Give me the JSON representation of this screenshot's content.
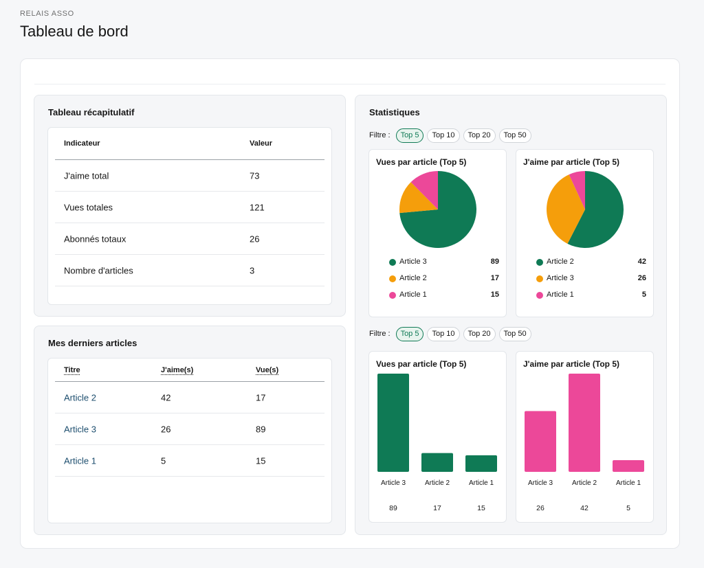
{
  "header": {
    "eyebrow": "RELAIS ASSO",
    "title": "Tableau de bord"
  },
  "summary": {
    "title": "Tableau récapitulatif",
    "columns": [
      "Indicateur",
      "Valeur"
    ],
    "rows": [
      {
        "label": "J'aime total",
        "value": "73"
      },
      {
        "label": "Vues totales",
        "value": "121"
      },
      {
        "label": "Abonnés totaux",
        "value": "26"
      },
      {
        "label": "Nombre d'articles",
        "value": "3"
      }
    ]
  },
  "articles": {
    "title": "Mes derniers articles",
    "columns": [
      "Titre",
      "J'aime(s)",
      "Vue(s)"
    ],
    "rows": [
      {
        "title": "Article 2",
        "likes": "42",
        "views": "17"
      },
      {
        "title": "Article 3",
        "likes": "26",
        "views": "89"
      },
      {
        "title": "Article 1",
        "likes": "5",
        "views": "15"
      }
    ]
  },
  "stats": {
    "title": "Statistiques",
    "filter_label": "Filtre :",
    "filters": [
      "Top 5",
      "Top 10",
      "Top 20",
      "Top 50"
    ],
    "active_filter": "Top 5",
    "colors": {
      "green": "#0f7a55",
      "orange": "#f59e0b",
      "pink": "#ec4899"
    }
  },
  "chart_data": [
    {
      "type": "pie",
      "title": "Vues par article (Top 5)",
      "labels": [
        "Article 3",
        "Article 2",
        "Article 1"
      ],
      "values": [
        89,
        17,
        15
      ],
      "colors": [
        "#0f7a55",
        "#f59e0b",
        "#ec4899"
      ],
      "legend": "bottom"
    },
    {
      "type": "pie",
      "title": "J'aime par article (Top 5)",
      "labels": [
        "Article 2",
        "Article 3",
        "Article 1"
      ],
      "values": [
        42,
        26,
        5
      ],
      "colors": [
        "#0f7a55",
        "#f59e0b",
        "#ec4899"
      ],
      "legend": "bottom"
    },
    {
      "type": "bar",
      "title": "Vues par article (Top 5)",
      "categories": [
        "Article 3",
        "Article 2",
        "Article 1"
      ],
      "values": [
        89,
        17,
        15
      ],
      "color": "#0f7a55",
      "ylim": [
        0,
        89
      ]
    },
    {
      "type": "bar",
      "title": "J'aime par article (Top 5)",
      "categories": [
        "Article 3",
        "Article 2",
        "Article 1"
      ],
      "values": [
        26,
        42,
        5
      ],
      "color": "#ec4899",
      "ylim": [
        0,
        42
      ]
    }
  ]
}
